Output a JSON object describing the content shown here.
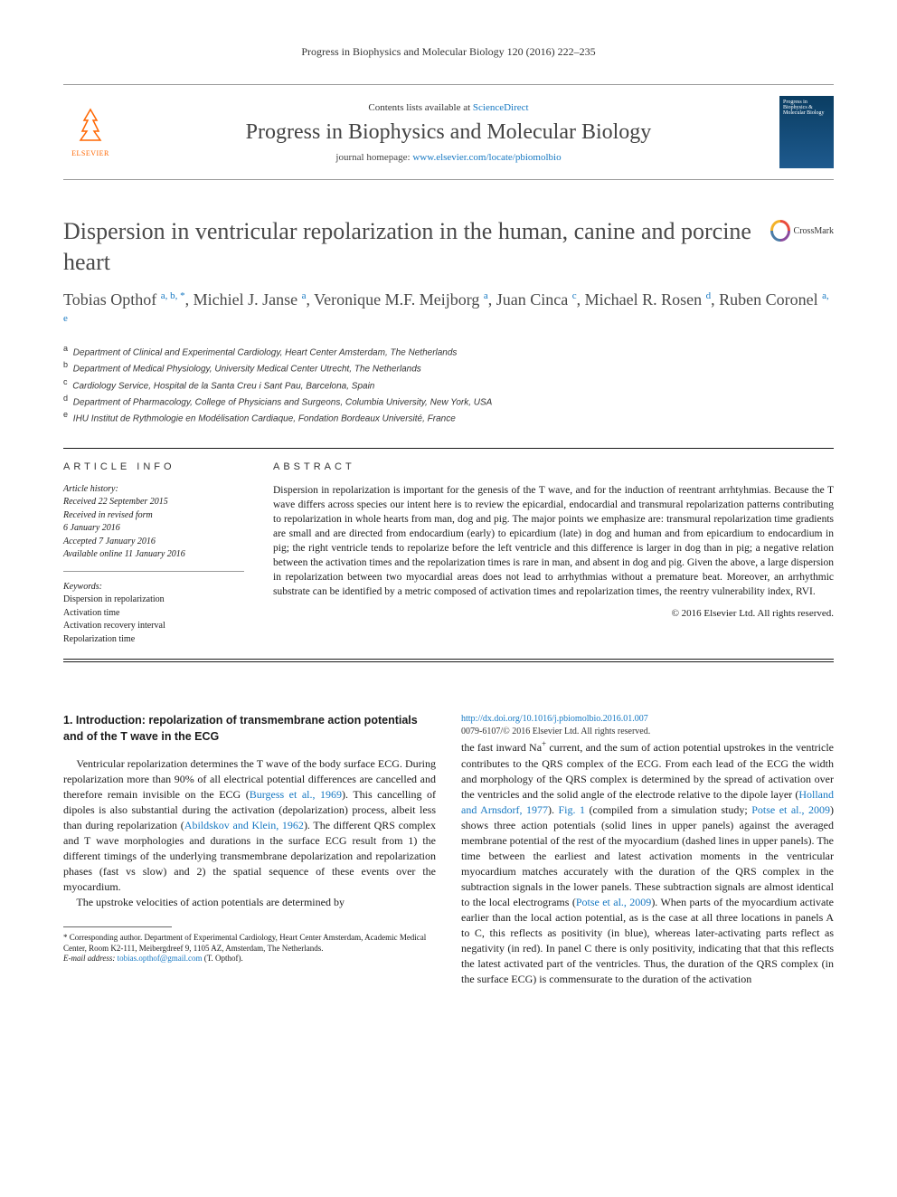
{
  "journal_ref": "Progress in Biophysics and Molecular Biology 120 (2016) 222–235",
  "header": {
    "contents_prefix": "Contents lists available at ",
    "contents_link": "ScienceDirect",
    "journal_name": "Progress in Biophysics and Molecular Biology",
    "homepage_prefix": "journal homepage: ",
    "homepage_url": "www.elsevier.com/locate/pbiomolbio",
    "publisher": "ELSEVIER",
    "cover_title": "Progress in Biophysics & Molecular Biology"
  },
  "crossmark_label": "CrossMark",
  "title": "Dispersion in ventricular repolarization in the human, canine and porcine heart",
  "authors_html": "Tobias Opthof <sup>a, b, *</sup>, Michiel J. Janse <sup>a</sup>, Veronique M.F. Meijborg <sup>a</sup>, Juan Cinca <sup>c</sup>, Michael R. Rosen <sup>d</sup>, Ruben Coronel <sup>a, e</sup>",
  "affiliations": [
    {
      "sup": "a",
      "text": "Department of Clinical and Experimental Cardiology, Heart Center Amsterdam, The Netherlands"
    },
    {
      "sup": "b",
      "text": "Department of Medical Physiology, University Medical Center Utrecht, The Netherlands"
    },
    {
      "sup": "c",
      "text": "Cardiology Service, Hospital de la Santa Creu i Sant Pau, Barcelona, Spain"
    },
    {
      "sup": "d",
      "text": "Department of Pharmacology, College of Physicians and Surgeons, Columbia University, New York, USA"
    },
    {
      "sup": "e",
      "text": "IHU Institut de Rythmologie en Modélisation Cardiaque, Fondation Bordeaux Université, France"
    }
  ],
  "info_head": "ARTICLE INFO",
  "abstract_head": "ABSTRACT",
  "history": {
    "label": "Article history:",
    "lines": [
      "Received 22 September 2015",
      "Received in revised form",
      "6 January 2016",
      "Accepted 7 January 2016",
      "Available online 11 January 2016"
    ]
  },
  "keywords": {
    "label": "Keywords:",
    "items": [
      "Dispersion in repolarization",
      "Activation time",
      "Activation recovery interval",
      "Repolarization time"
    ]
  },
  "abstract": "Dispersion in repolarization is important for the genesis of the T wave, and for the induction of reentrant arrhtyhmias. Because the T wave differs across species our intent here is to review the epicardial, endocardial and transmural repolarization patterns contributing to repolarization in whole hearts from man, dog and pig. The major points we emphasize are: transmural repolarization time gradients are small and are directed from endocardium (early) to epicardium (late) in dog and human and from epicardium to endocardium in pig; the right ventricle tends to repolarize before the left ventricle and this difference is larger in dog than in pig; a negative relation between the activation times and the repolarization times is rare in man, and absent in dog and pig. Given the above, a large dispersion in repolarization between two myocardial areas does not lead to arrhythmias without a premature beat. Moreover, an arrhythmic substrate can be identified by a metric composed of activation times and repolarization times, the reentry vulnerability index, RVI.",
  "copyright": "© 2016 Elsevier Ltd. All rights reserved.",
  "section1_head": "1. Introduction: repolarization of transmembrane action potentials and of the T wave in the ECG",
  "para1_pre": "Ventricular repolarization determines the T wave of the body surface ECG. During repolarization more than 90% of all electrical potential differences are cancelled and therefore remain invisible on the ECG (",
  "para1_ref1": "Burgess et al., 1969",
  "para1_mid1": "). This cancelling of dipoles is also substantial during the activation (depolarization) process, albeit less than during repolarization (",
  "para1_ref2": "Abildskov and Klein, 1962",
  "para1_post": "). The different QRS complex and T wave morphologies and durations in the surface ECG result from 1) the different timings of the underlying transmembrane depolarization and repolarization phases (fast vs slow) and 2) the spatial sequence of these events over the myocardium.",
  "para2": "The upstroke velocities of action potentials are determined by",
  "para3_pre": "the fast inward Na",
  "para3_sup": "+",
  "para3_mid1": " current, and the sum of action potential upstrokes in the ventricle contributes to the QRS complex of the ECG. From each lead of the ECG the width and morphology of the QRS complex is determined by the spread of activation over the ventricles and the solid angle of the electrode relative to the dipole layer (",
  "para3_ref1": "Holland and Arnsdorf, 1977",
  "para3_mid2": "). ",
  "para3_ref2": "Fig. 1",
  "para3_mid3": " (compiled from a simulation study; ",
  "para3_ref3": "Potse et al., 2009",
  "para3_mid4": ") shows three action potentials (solid lines in upper panels) against the averaged membrane potential of the rest of the myocardium (dashed lines in upper panels). The time between the earliest and latest activation moments in the ventricular myocardium matches accurately with the duration of the QRS complex in the subtraction signals in the lower panels. These subtraction signals are almost identical to the local electrograms (",
  "para3_ref4": "Potse et al., 2009",
  "para3_post": "). When parts of the myocardium activate earlier than the local action potential, as is the case at all three locations in panels A to C, this reflects as positivity (in blue), whereas later-activating parts reflect as negativity (in red). In panel C there is only positivity, indicating that that this reflects the latest activated part of the ventricles. Thus, the duration of the QRS complex (in the surface ECG) is commensurate to the duration of the activation",
  "corresponding": {
    "marker": "*",
    "text": "Corresponding author. Department of Experimental Cardiology, Heart Center Amsterdam, Academic Medical Center, Room K2-111, Meibergdreef 9, 1105 AZ, Amsterdam, The Netherlands.",
    "email_label": "E-mail address: ",
    "email": "tobias.opthof@gmail.com",
    "email_suffix": " (T. Opthof)."
  },
  "doi": {
    "url": "http://dx.doi.org/10.1016/j.pbiomolbio.2016.01.007",
    "issn_line": "0079-6107/© 2016 Elsevier Ltd. All rights reserved."
  }
}
